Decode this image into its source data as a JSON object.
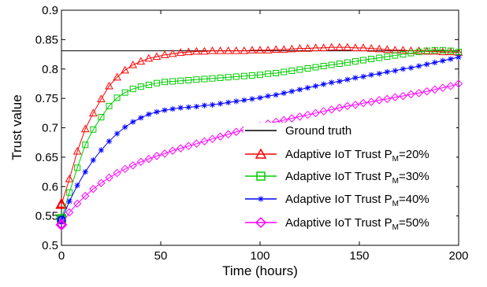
{
  "chart_data": {
    "type": "line",
    "xlabel": "Time (hours)",
    "ylabel": "Trust value",
    "xlim": [
      0,
      200
    ],
    "ylim": [
      0.5,
      0.9
    ],
    "xticks": [
      0,
      50,
      100,
      150,
      200
    ],
    "xtick_labels": [
      "0",
      "50",
      "100",
      "150",
      "200"
    ],
    "yticks": [
      0.5,
      0.55,
      0.6,
      0.65,
      0.7,
      0.75,
      0.8,
      0.85,
      0.9
    ],
    "ytick_labels": [
      "0.5",
      "0.55",
      "0.6",
      "0.65",
      "0.7",
      "0.75",
      "0.8",
      "0.85",
      "0.9"
    ],
    "grid": false,
    "legend_position": "lower-right",
    "series": [
      {
        "name": "Ground truth",
        "legend_main": "Ground truth",
        "legend_sub": "",
        "legend_tail": "",
        "color": "#000000",
        "marker": "none",
        "x": [
          0,
          200
        ],
        "y": [
          0.831,
          0.831
        ]
      },
      {
        "name": "Adaptive IoT Trust PM=20%",
        "legend_main": "Adaptive IoT Trust P",
        "legend_sub": "M",
        "legend_tail": "=20%",
        "color": "#ff0000",
        "marker": "triangle",
        "x": [
          0,
          4,
          8,
          12,
          16,
          20,
          24,
          28,
          32,
          36,
          40,
          44,
          48,
          52,
          56,
          60,
          64,
          68,
          72,
          76,
          80,
          84,
          88,
          92,
          96,
          100,
          104,
          108,
          112,
          116,
          120,
          124,
          128,
          132,
          136,
          140,
          144,
          148,
          152,
          156,
          160,
          164,
          168,
          172,
          176,
          180,
          184,
          188,
          192,
          196,
          200
        ],
        "y": [
          0.57,
          0.613,
          0.66,
          0.698,
          0.725,
          0.749,
          0.771,
          0.786,
          0.798,
          0.807,
          0.813,
          0.818,
          0.821,
          0.824,
          0.826,
          0.828,
          0.829,
          0.83,
          0.83,
          0.831,
          0.831,
          0.831,
          0.831,
          0.831,
          0.832,
          0.832,
          0.832,
          0.833,
          0.833,
          0.834,
          0.835,
          0.835,
          0.836,
          0.836,
          0.837,
          0.837,
          0.837,
          0.836,
          0.836,
          0.835,
          0.834,
          0.833,
          0.832,
          0.832,
          0.831,
          0.831,
          0.83,
          0.83,
          0.829,
          0.829,
          0.828
        ]
      },
      {
        "name": "Adaptive IoT Trust PM=30%",
        "legend_main": "Adaptive IoT Trust P",
        "legend_sub": "M",
        "legend_tail": "=30%",
        "color": "#00cc00",
        "marker": "square",
        "x": [
          0,
          4,
          8,
          12,
          16,
          20,
          24,
          28,
          32,
          36,
          40,
          44,
          48,
          52,
          56,
          60,
          64,
          68,
          72,
          76,
          80,
          84,
          88,
          92,
          96,
          100,
          104,
          108,
          112,
          116,
          120,
          124,
          128,
          132,
          136,
          140,
          144,
          148,
          152,
          156,
          160,
          164,
          168,
          172,
          176,
          180,
          184,
          188,
          192,
          196,
          200
        ],
        "y": [
          0.545,
          0.59,
          0.632,
          0.671,
          0.697,
          0.718,
          0.737,
          0.751,
          0.76,
          0.766,
          0.77,
          0.773,
          0.776,
          0.778,
          0.779,
          0.78,
          0.781,
          0.782,
          0.783,
          0.784,
          0.785,
          0.786,
          0.787,
          0.788,
          0.789,
          0.79,
          0.792,
          0.793,
          0.795,
          0.797,
          0.799,
          0.801,
          0.803,
          0.805,
          0.807,
          0.809,
          0.811,
          0.813,
          0.815,
          0.817,
          0.819,
          0.821,
          0.823,
          0.825,
          0.827,
          0.829,
          0.831,
          0.832,
          0.832,
          0.831,
          0.829
        ]
      },
      {
        "name": "Adaptive IoT Trust PM=40%",
        "legend_main": "Adaptive IoT Trust P",
        "legend_sub": "M",
        "legend_tail": "=40%",
        "color": "#0000ff",
        "marker": "asterisk",
        "x": [
          0,
          4,
          8,
          12,
          16,
          20,
          24,
          28,
          32,
          36,
          40,
          44,
          48,
          52,
          56,
          60,
          64,
          68,
          72,
          76,
          80,
          84,
          88,
          92,
          96,
          100,
          104,
          108,
          112,
          116,
          120,
          124,
          128,
          132,
          136,
          140,
          144,
          148,
          152,
          156,
          160,
          164,
          168,
          172,
          176,
          180,
          184,
          188,
          192,
          196,
          200
        ],
        "y": [
          0.543,
          0.575,
          0.602,
          0.625,
          0.645,
          0.662,
          0.677,
          0.69,
          0.701,
          0.71,
          0.717,
          0.723,
          0.727,
          0.73,
          0.732,
          0.734,
          0.735,
          0.736,
          0.738,
          0.739,
          0.741,
          0.743,
          0.745,
          0.747,
          0.749,
          0.751,
          0.754,
          0.756,
          0.759,
          0.762,
          0.765,
          0.768,
          0.771,
          0.774,
          0.777,
          0.779,
          0.782,
          0.785,
          0.787,
          0.79,
          0.792,
          0.795,
          0.797,
          0.8,
          0.802,
          0.805,
          0.808,
          0.811,
          0.814,
          0.817,
          0.82
        ]
      },
      {
        "name": "Adaptive IoT Trust PM=50%",
        "legend_main": "Adaptive IoT Trust P",
        "legend_sub": "M",
        "legend_tail": "=50%",
        "color": "#ff00ff",
        "marker": "diamond",
        "x": [
          0,
          4,
          8,
          12,
          16,
          20,
          24,
          28,
          32,
          36,
          40,
          44,
          48,
          52,
          56,
          60,
          64,
          68,
          72,
          76,
          80,
          84,
          88,
          92,
          96,
          100,
          104,
          108,
          112,
          116,
          120,
          124,
          128,
          132,
          136,
          140,
          144,
          148,
          152,
          156,
          160,
          164,
          168,
          172,
          176,
          180,
          184,
          188,
          192,
          196,
          200
        ],
        "y": [
          0.535,
          0.556,
          0.571,
          0.584,
          0.596,
          0.606,
          0.615,
          0.623,
          0.63,
          0.636,
          0.642,
          0.647,
          0.652,
          0.656,
          0.661,
          0.665,
          0.669,
          0.673,
          0.677,
          0.681,
          0.685,
          0.689,
          0.693,
          0.697,
          0.7,
          0.703,
          0.707,
          0.71,
          0.713,
          0.716,
          0.719,
          0.722,
          0.725,
          0.728,
          0.731,
          0.734,
          0.737,
          0.739,
          0.742,
          0.744,
          0.747,
          0.749,
          0.752,
          0.754,
          0.757,
          0.759,
          0.762,
          0.765,
          0.768,
          0.771,
          0.775
        ]
      }
    ]
  }
}
